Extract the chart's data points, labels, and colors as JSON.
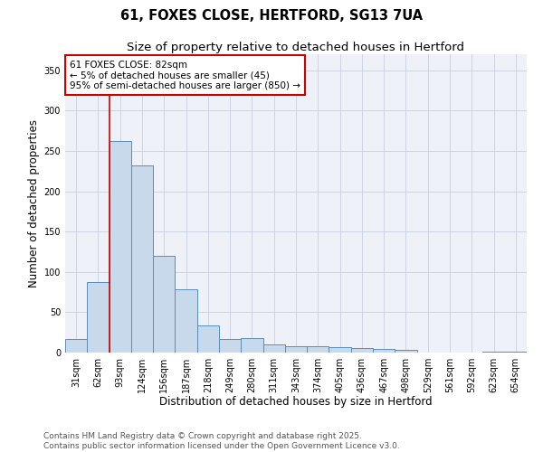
{
  "title1": "61, FOXES CLOSE, HERTFORD, SG13 7UA",
  "title2": "Size of property relative to detached houses in Hertford",
  "xlabel": "Distribution of detached houses by size in Hertford",
  "ylabel": "Number of detached properties",
  "categories": [
    "31sqm",
    "62sqm",
    "93sqm",
    "124sqm",
    "156sqm",
    "187sqm",
    "218sqm",
    "249sqm",
    "280sqm",
    "311sqm",
    "343sqm",
    "374sqm",
    "405sqm",
    "436sqm",
    "467sqm",
    "498sqm",
    "529sqm",
    "561sqm",
    "592sqm",
    "623sqm",
    "654sqm"
  ],
  "values": [
    17,
    88,
    262,
    232,
    120,
    79,
    34,
    17,
    18,
    10,
    8,
    8,
    7,
    6,
    4,
    3,
    0,
    0,
    0,
    1,
    1
  ],
  "bar_color": "#c9d9ec",
  "bar_edge_color": "#5b8db8",
  "vline_x_idx": 1.5,
  "vline_color": "#cc0000",
  "annotation_text": "61 FOXES CLOSE: 82sqm\n← 5% of detached houses are smaller (45)\n95% of semi-detached houses are larger (850) →",
  "annotation_box_color": "#cc0000",
  "ylim": [
    0,
    370
  ],
  "yticks": [
    0,
    50,
    100,
    150,
    200,
    250,
    300,
    350
  ],
  "grid_color": "#c8d0dc",
  "bg_color": "#eef2f8",
  "footer1": "Contains HM Land Registry data © Crown copyright and database right 2025.",
  "footer2": "Contains public sector information licensed under the Open Government Licence v3.0.",
  "title_fontsize": 10.5,
  "subtitle_fontsize": 9.5,
  "axis_label_fontsize": 8.5,
  "tick_fontsize": 7,
  "annotation_fontsize": 7.5,
  "footer_fontsize": 6.5
}
